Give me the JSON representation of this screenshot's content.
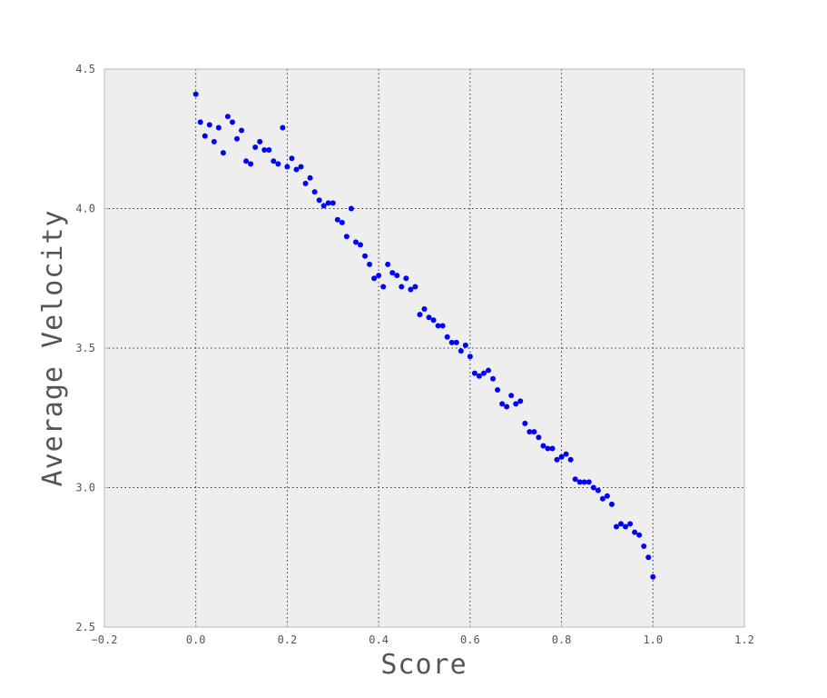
{
  "chart_data": {
    "type": "scatter",
    "title": "",
    "xlabel": "Score",
    "ylabel": "Average Velocity",
    "xlim": [
      -0.2,
      1.2
    ],
    "ylim": [
      2.5,
      4.5
    ],
    "x_ticks": [
      "−0.2",
      "0.0",
      "0.2",
      "0.4",
      "0.6",
      "0.8",
      "1.0",
      "1.2"
    ],
    "y_ticks": [
      "2.5",
      "3.0",
      "3.5",
      "4.0",
      "4.5"
    ],
    "grid": true,
    "colors": {
      "point": "#0000ff",
      "plot_background": "#eeeeee",
      "frame": "#bbbbbb",
      "text": "#555555"
    },
    "series": [
      {
        "x": [
          0.0,
          0.01,
          0.02,
          0.03,
          0.04,
          0.05,
          0.06,
          0.07,
          0.08,
          0.09,
          0.1,
          0.11,
          0.12,
          0.13,
          0.14,
          0.15,
          0.16,
          0.17,
          0.18,
          0.19,
          0.2,
          0.21,
          0.22,
          0.23,
          0.24,
          0.25,
          0.26,
          0.27,
          0.28,
          0.29,
          0.3,
          0.31,
          0.32,
          0.33,
          0.34,
          0.35,
          0.36,
          0.37,
          0.38,
          0.39,
          0.4,
          0.41,
          0.42,
          0.43,
          0.44,
          0.45,
          0.46,
          0.47,
          0.48,
          0.49,
          0.5,
          0.51,
          0.52,
          0.53,
          0.54,
          0.55,
          0.56,
          0.57,
          0.58,
          0.59,
          0.6,
          0.61,
          0.62,
          0.63,
          0.64,
          0.65,
          0.66,
          0.67,
          0.68,
          0.69,
          0.7,
          0.71,
          0.72,
          0.73,
          0.74,
          0.75,
          0.76,
          0.77,
          0.78,
          0.79,
          0.8,
          0.81,
          0.82,
          0.83,
          0.84,
          0.85,
          0.86,
          0.87,
          0.88,
          0.89,
          0.9,
          0.91,
          0.92,
          0.93,
          0.94,
          0.95,
          0.96,
          0.97,
          0.98,
          0.99,
          1.0
        ],
        "y": [
          4.41,
          4.31,
          4.26,
          4.3,
          4.24,
          4.29,
          4.2,
          4.33,
          4.31,
          4.25,
          4.28,
          4.17,
          4.16,
          4.22,
          4.24,
          4.21,
          4.21,
          4.17,
          4.16,
          4.29,
          4.15,
          4.18,
          4.14,
          4.15,
          4.09,
          4.11,
          4.06,
          4.03,
          4.01,
          4.02,
          4.02,
          3.96,
          3.95,
          3.9,
          4.0,
          3.88,
          3.87,
          3.83,
          3.8,
          3.75,
          3.76,
          3.72,
          3.8,
          3.77,
          3.76,
          3.72,
          3.75,
          3.71,
          3.72,
          3.62,
          3.64,
          3.61,
          3.6,
          3.58,
          3.58,
          3.54,
          3.52,
          3.52,
          3.49,
          3.51,
          3.47,
          3.41,
          3.4,
          3.41,
          3.42,
          3.39,
          3.35,
          3.3,
          3.29,
          3.33,
          3.3,
          3.31,
          3.23,
          3.2,
          3.2,
          3.18,
          3.15,
          3.14,
          3.14,
          3.1,
          3.11,
          3.12,
          3.1,
          3.03,
          3.02,
          3.02,
          3.02,
          3.0,
          2.99,
          2.96,
          2.97,
          2.94,
          2.86,
          2.87,
          2.86,
          2.87,
          2.84,
          2.83,
          2.79,
          2.75,
          2.68
        ]
      }
    ]
  }
}
